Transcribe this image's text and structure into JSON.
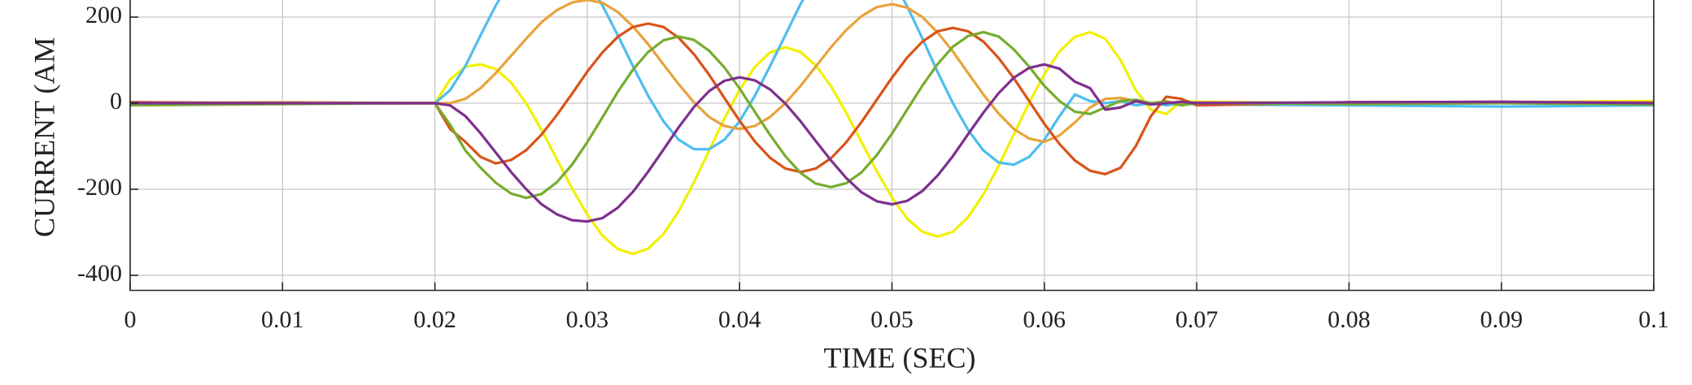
{
  "chart_data": {
    "type": "line",
    "xlabel": "TIME (SEC)",
    "ylabel": "CURRENT (AM",
    "xlim": [
      0,
      0.1
    ],
    "ylim": [
      -435,
      238
    ],
    "xticks": [
      0,
      0.01,
      0.02,
      0.03,
      0.04,
      0.05,
      0.06,
      0.07,
      0.08,
      0.09,
      0.1
    ],
    "yticks": [
      200,
      0,
      -200,
      -400
    ],
    "grid": true,
    "x": [
      0,
      0.01,
      0.02,
      0.021,
      0.022,
      0.023,
      0.024,
      0.025,
      0.026,
      0.027,
      0.028,
      0.029,
      0.03,
      0.031,
      0.032,
      0.033,
      0.034,
      0.035,
      0.036,
      0.037,
      0.038,
      0.039,
      0.04,
      0.041,
      0.042,
      0.043,
      0.044,
      0.045,
      0.046,
      0.047,
      0.048,
      0.049,
      0.05,
      0.051,
      0.052,
      0.053,
      0.054,
      0.055,
      0.056,
      0.057,
      0.058,
      0.059,
      0.06,
      0.061,
      0.062,
      0.063,
      0.064,
      0.065,
      0.066,
      0.067,
      0.068,
      0.069,
      0.07,
      0.08,
      0.09,
      0.1
    ],
    "series": [
      {
        "color": "#f2f000",
        "values": [
          -3,
          0,
          0,
          55,
          85,
          90,
          79,
          48,
          -1,
          -62,
          -130,
          -198,
          -259,
          -308,
          -339,
          -350,
          -338,
          -304,
          -251,
          -184,
          -110,
          -36,
          31,
          84,
          118,
          130,
          119,
          88,
          39,
          -22,
          -90,
          -158,
          -219,
          -268,
          -299,
          -310,
          -299,
          -265,
          -212,
          -146,
          -72,
          1,
          67,
          120,
          154,
          165,
          150,
          100,
          30,
          -15,
          -25,
          5,
          3,
          0,
          2,
          5
        ]
      },
      {
        "color": "#4dbeee",
        "values": [
          2,
          0,
          0,
          30,
          86,
          158,
          227,
          286,
          329,
          351,
          351,
          329,
          286,
          227,
          158,
          86,
          17,
          -42,
          -85,
          -107,
          -107,
          -85,
          -42,
          17,
          86,
          158,
          230,
          290,
          333,
          356,
          356,
          333,
          290,
          225,
          150,
          72,
          0,
          -62,
          -110,
          -138,
          -143,
          -125,
          -85,
          -30,
          20,
          5,
          0,
          5,
          -5,
          0,
          -5,
          0,
          -3,
          -5,
          -8,
          -5
        ]
      },
      {
        "color": "#e8a33a",
        "values": [
          0,
          2,
          0,
          0,
          10,
          35,
          70,
          110,
          150,
          188,
          216,
          234,
          240,
          233,
          212,
          178,
          137,
          90,
          44,
          2,
          -32,
          -53,
          -60,
          -53,
          -32,
          0,
          40,
          85,
          130,
          170,
          202,
          223,
          230,
          222,
          200,
          164,
          120,
          70,
          20,
          -24,
          -60,
          -82,
          -90,
          -75,
          -45,
          -10,
          10,
          12,
          5,
          0,
          5,
          -3,
          2,
          0,
          3,
          2
        ]
      },
      {
        "color": "#d95319",
        "values": [
          2,
          0,
          0,
          -60,
          -90,
          -125,
          -140,
          -132,
          -109,
          -73,
          -28,
          22,
          73,
          118,
          154,
          177,
          185,
          177,
          152,
          114,
          66,
          12,
          -41,
          -89,
          -127,
          -152,
          -160,
          -152,
          -128,
          -91,
          -44,
          8,
          59,
          106,
          143,
          167,
          175,
          167,
          143,
          105,
          58,
          5,
          -48,
          -95,
          -133,
          -157,
          -165,
          -150,
          -100,
          -30,
          15,
          10,
          -5,
          2,
          3,
          0
        ]
      },
      {
        "color": "#77ac30",
        "values": [
          -5,
          -2,
          0,
          -50,
          -110,
          -150,
          -185,
          -210,
          -220,
          -211,
          -184,
          -143,
          -91,
          -33,
          26,
          78,
          119,
          146,
          155,
          147,
          122,
          83,
          34,
          -20,
          -74,
          -123,
          -162,
          -187,
          -195,
          -186,
          -161,
          -121,
          -71,
          -15,
          41,
          91,
          131,
          156,
          165,
          155,
          125,
          85,
          40,
          5,
          -20,
          -25,
          -10,
          5,
          8,
          0,
          3,
          -5,
          0,
          -2,
          0,
          -3
        ]
      },
      {
        "color": "#7e2f8e",
        "values": [
          0,
          0,
          0,
          -5,
          -30,
          -70,
          -115,
          -160,
          -200,
          -235,
          -258,
          -272,
          -275,
          -267,
          -243,
          -206,
          -159,
          -108,
          -56,
          -9,
          28,
          52,
          60,
          53,
          32,
          -1,
          -42,
          -88,
          -133,
          -174,
          -207,
          -228,
          -235,
          -227,
          -204,
          -168,
          -123,
          -72,
          -22,
          23,
          59,
          82,
          90,
          80,
          50,
          35,
          -15,
          -10,
          5,
          -3,
          0,
          3,
          0,
          2,
          3,
          0
        ]
      }
    ]
  }
}
